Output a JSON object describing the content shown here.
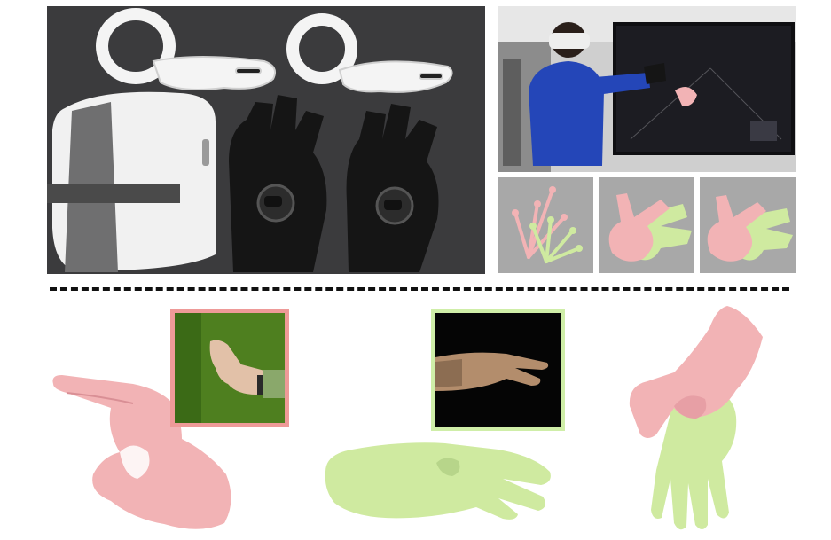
{
  "figure": {
    "colors": {
      "pink_hand": "#f2b3b5",
      "green_hand": "#cfeaa0",
      "pink_border": "#ee9a98",
      "green_border": "#cfeea8",
      "divider": "#111111",
      "photo_bg_dark": "#3a3a3c",
      "sweater_blue": "#2446b8",
      "panel_gray": "#a8a8a8"
    },
    "top_left_photo": {
      "subject": "vr-headset-controllers-and-haptic-gloves"
    },
    "top_right_photo": {
      "subject": "person-wearing-vr-headset-with-gloves-in-front-of-screen"
    },
    "hand_panels": [
      "skeleton-hand-pose",
      "mesh-hand-pair",
      "mesh-hand-pair-refined"
    ],
    "bottom_examples": [
      "pink-hand-pinch",
      "green-hand-flat",
      "pink-green-hand-pair"
    ]
  }
}
